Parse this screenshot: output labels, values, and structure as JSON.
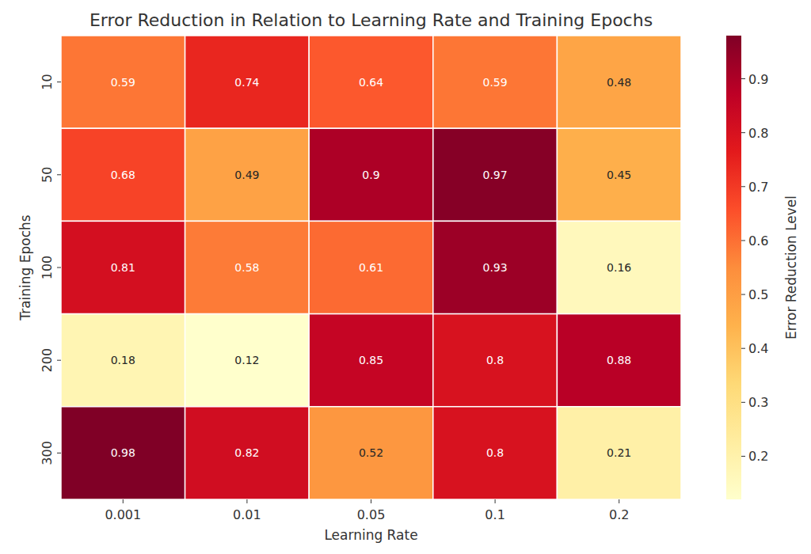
{
  "chart_data": {
    "type": "heatmap",
    "title": "Error Reduction in Relation to Learning Rate and Training Epochs",
    "x_label": "Learning Rate",
    "y_label": "Training Epochs",
    "categories": [
      "0.001",
      "0.01",
      "0.05",
      "0.1",
      "0.2"
    ],
    "y_categories": [
      "10",
      "50",
      "100",
      "200",
      "300"
    ],
    "cells": [
      [
        0.59,
        0.74,
        0.64,
        0.59,
        0.48
      ],
      [
        0.68,
        0.49,
        0.9,
        0.97,
        0.45
      ],
      [
        0.81,
        0.58,
        0.61,
        0.93,
        0.16
      ],
      [
        0.18,
        0.12,
        0.85,
        0.8,
        0.88
      ],
      [
        0.98,
        0.82,
        0.52,
        0.8,
        0.21
      ]
    ],
    "data_labels": true,
    "color_label": "Error Reduction Level",
    "color_range": [
      0.12,
      0.98
    ],
    "color_ticks": [
      0.2,
      0.3,
      0.4,
      0.5,
      0.6,
      0.7,
      0.8,
      0.9
    ]
  }
}
